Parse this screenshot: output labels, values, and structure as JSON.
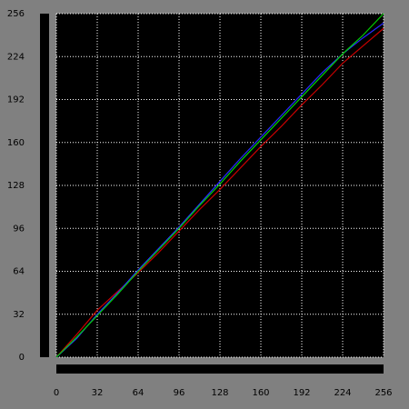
{
  "chart_data": {
    "type": "line",
    "x": [
      0,
      16,
      32,
      48,
      64,
      80,
      96,
      112,
      128,
      144,
      160,
      176,
      192,
      208,
      224,
      240,
      256
    ],
    "series": [
      {
        "color": "#c80000",
        "values": [
          0,
          17,
          35,
          49,
          63,
          78,
          94,
          110,
          125,
          141,
          157,
          172,
          188,
          203,
          219,
          232,
          245
        ]
      },
      {
        "color": "#2828ff",
        "values": [
          0,
          14,
          32,
          48,
          65,
          81,
          97,
          114,
          131,
          148,
          164,
          180,
          196,
          212,
          226,
          238,
          249
        ]
      },
      {
        "color": "#00d000",
        "values": [
          0,
          15,
          31,
          47,
          64,
          80,
          96,
          113,
          129,
          146,
          162,
          178,
          194,
          210,
          226,
          240,
          256
        ]
      }
    ],
    "xlim": [
      0,
      256
    ],
    "ylim": [
      0,
      256
    ],
    "xticks": [
      0,
      32,
      64,
      96,
      128,
      160,
      192,
      224,
      256
    ],
    "yticks": [
      0,
      32,
      64,
      96,
      128,
      160,
      192,
      224,
      256
    ],
    "grid": true
  }
}
